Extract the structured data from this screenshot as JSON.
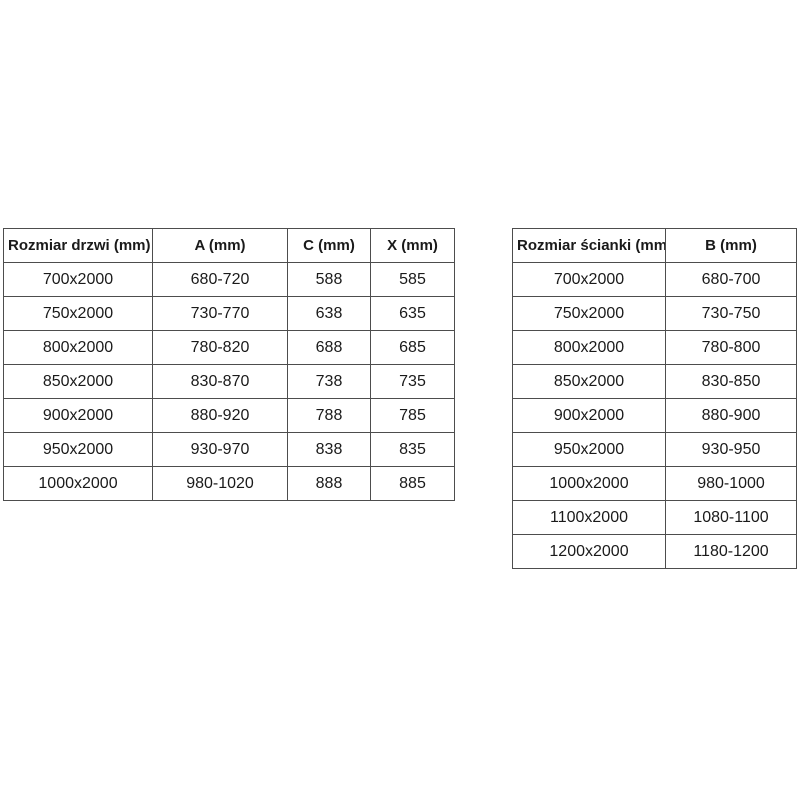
{
  "page": {
    "background_color": "#ffffff",
    "text_color": "#1a1a1a",
    "border_color": "#4d4d4d"
  },
  "tables": [
    {
      "name": "door-size-table",
      "headers": [
        "Rozmiar drzwi (mm)",
        "A (mm)",
        "C (mm)",
        "X (mm)"
      ],
      "rows": [
        [
          "700x2000",
          "680-720",
          "588",
          "585"
        ],
        [
          "750x2000",
          "730-770",
          "638",
          "635"
        ],
        [
          "800x2000",
          "780-820",
          "688",
          "685"
        ],
        [
          "850x2000",
          "830-870",
          "738",
          "735"
        ],
        [
          "900x2000",
          "880-920",
          "788",
          "785"
        ],
        [
          "950x2000",
          "930-970",
          "838",
          "835"
        ],
        [
          "1000x2000",
          "980-1020",
          "888",
          "885"
        ]
      ]
    },
    {
      "name": "wall-size-table",
      "headers": [
        "Rozmiar ścianki (mm)",
        "B (mm)"
      ],
      "rows": [
        [
          "700x2000",
          "680-700"
        ],
        [
          "750x2000",
          "730-750"
        ],
        [
          "800x2000",
          "780-800"
        ],
        [
          "850x2000",
          "830-850"
        ],
        [
          "900x2000",
          "880-900"
        ],
        [
          "950x2000",
          "930-950"
        ],
        [
          "1000x2000",
          "980-1000"
        ],
        [
          "1100x2000",
          "1080-1100"
        ],
        [
          "1200x2000",
          "1180-1200"
        ]
      ]
    }
  ]
}
